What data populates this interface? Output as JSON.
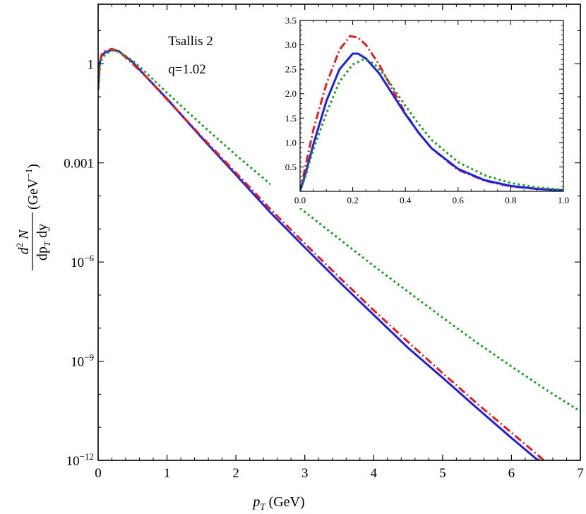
{
  "chart_data": [
    {
      "type": "line",
      "scale": "log-y",
      "annotations": [
        "Tsallis 2",
        "q=1.02"
      ],
      "xlabel": {
        "var": "p",
        "sub": "T",
        "unit": " (GeV)"
      },
      "ylabel": {
        "num_pre": "d",
        "num_sup": "2",
        "num_post": " N",
        "den_pre": "dp",
        "den_sub": "T",
        "den_post": " dy",
        "unit_pre": "(GeV",
        "unit_sup": "−1",
        "unit_post": ")"
      },
      "xlim": [
        0,
        7
      ],
      "ylim_log10": [
        -12,
        1.8
      ],
      "x_ticks": [
        "0",
        "1",
        "2",
        "3",
        "4",
        "5",
        "6",
        "7"
      ],
      "y_ticks": [
        {
          "exp": 0,
          "text": "1"
        },
        {
          "exp": -3,
          "text": "0.001"
        },
        {
          "exp": -6,
          "base": "10",
          "sup": "−6"
        },
        {
          "exp": -9,
          "base": "10",
          "sup": "−9"
        },
        {
          "exp": -12,
          "base": "10",
          "sup": "−12"
        }
      ],
      "series": [
        {
          "color": "#2020e0",
          "style": "solid",
          "points": [
            [
              0.0,
              -0.8
            ],
            [
              0.02,
              0.0
            ],
            [
              0.05,
              0.24
            ],
            [
              0.1,
              0.34
            ],
            [
              0.2,
              0.42
            ],
            [
              0.3,
              0.38
            ],
            [
              0.5,
              0.05
            ],
            [
              0.7,
              -0.4
            ],
            [
              1.0,
              -1.06
            ],
            [
              1.5,
              -2.23
            ],
            [
              2.0,
              -3.36
            ],
            [
              2.5,
              -4.5
            ],
            [
              3.0,
              -5.56
            ],
            [
              3.5,
              -6.6
            ],
            [
              4.0,
              -7.6
            ],
            [
              4.5,
              -8.6
            ],
            [
              5.0,
              -9.5
            ],
            [
              5.5,
              -10.42
            ],
            [
              6.0,
              -11.32
            ],
            [
              6.5,
              -12.2
            ]
          ]
        },
        {
          "color": "#e02020",
          "style": "dashdot",
          "points": [
            [
              0.0,
              -0.8
            ],
            [
              0.02,
              0.0
            ],
            [
              0.05,
              0.28
            ],
            [
              0.1,
              0.38
            ],
            [
              0.2,
              0.45
            ],
            [
              0.3,
              0.38
            ],
            [
              0.5,
              0.0
            ],
            [
              0.7,
              -0.4
            ],
            [
              1.0,
              -1.08
            ],
            [
              1.5,
              -2.2
            ],
            [
              2.0,
              -3.3
            ],
            [
              2.5,
              -4.4
            ],
            [
              3.0,
              -5.44
            ],
            [
              3.5,
              -6.46
            ],
            [
              4.0,
              -7.46
            ],
            [
              4.5,
              -8.42
            ],
            [
              5.0,
              -9.36
            ],
            [
              5.5,
              -10.28
            ],
            [
              6.0,
              -11.16
            ],
            [
              6.5,
              -12.05
            ],
            [
              6.6,
              -12.2
            ]
          ]
        },
        {
          "color": "#20a020",
          "style": "dotted",
          "points": [
            [
              0.0,
              -0.8
            ],
            [
              0.03,
              0.0
            ],
            [
              0.05,
              0.12
            ],
            [
              0.1,
              0.28
            ],
            [
              0.2,
              0.4
            ],
            [
              0.3,
              0.36
            ],
            [
              0.5,
              0.1
            ],
            [
              0.7,
              -0.28
            ],
            [
              1.0,
              -0.88
            ],
            [
              1.5,
              -1.84
            ],
            [
              2.0,
              -2.76
            ],
            [
              2.5,
              -3.64
            ],
            [
              3.0,
              -4.48
            ],
            [
              3.5,
              -5.3
            ],
            [
              4.0,
              -6.12
            ],
            [
              4.5,
              -6.9
            ],
            [
              5.0,
              -7.68
            ],
            [
              5.5,
              -8.44
            ],
            [
              6.0,
              -9.16
            ],
            [
              6.5,
              -9.86
            ],
            [
              7.0,
              -10.52
            ]
          ]
        }
      ]
    },
    {
      "type": "line",
      "inset": true,
      "xlim": [
        0,
        1
      ],
      "ylim": [
        0,
        3.5
      ],
      "x_ticks": [
        "0.0",
        "0.2",
        "0.4",
        "0.6",
        "0.8",
        "1.0"
      ],
      "y_ticks": [
        "0.5",
        "1.0",
        "1.5",
        "2.0",
        "2.5",
        "3.0",
        "3.5"
      ],
      "series": [
        {
          "color": "#e02020",
          "style": "dashdot",
          "points": [
            [
              0.0,
              0.0
            ],
            [
              0.02,
              0.5
            ],
            [
              0.05,
              1.25
            ],
            [
              0.1,
              2.2
            ],
            [
              0.15,
              2.9
            ],
            [
              0.19,
              3.18
            ],
            [
              0.22,
              3.15
            ],
            [
              0.25,
              3.0
            ],
            [
              0.3,
              2.6
            ],
            [
              0.35,
              2.1
            ],
            [
              0.4,
              1.6
            ],
            [
              0.45,
              1.2
            ],
            [
              0.5,
              0.88
            ],
            [
              0.6,
              0.44
            ],
            [
              0.7,
              0.22
            ],
            [
              0.8,
              0.1
            ],
            [
              0.9,
              0.05
            ],
            [
              1.0,
              0.02
            ]
          ]
        },
        {
          "color": "#2020e0",
          "style": "solid",
          "points": [
            [
              0.0,
              0.0
            ],
            [
              0.02,
              0.35
            ],
            [
              0.05,
              0.95
            ],
            [
              0.1,
              1.85
            ],
            [
              0.15,
              2.5
            ],
            [
              0.2,
              2.82
            ],
            [
              0.22,
              2.82
            ],
            [
              0.25,
              2.72
            ],
            [
              0.3,
              2.42
            ],
            [
              0.35,
              2.0
            ],
            [
              0.4,
              1.58
            ],
            [
              0.45,
              1.2
            ],
            [
              0.5,
              0.88
            ],
            [
              0.6,
              0.46
            ],
            [
              0.7,
              0.23
            ],
            [
              0.8,
              0.11
            ],
            [
              0.9,
              0.05
            ],
            [
              1.0,
              0.02
            ]
          ]
        },
        {
          "color": "#20a020",
          "style": "dotted",
          "points": [
            [
              0.0,
              0.0
            ],
            [
              0.02,
              0.3
            ],
            [
              0.05,
              0.85
            ],
            [
              0.1,
              1.6
            ],
            [
              0.15,
              2.25
            ],
            [
              0.2,
              2.6
            ],
            [
              0.24,
              2.7
            ],
            [
              0.28,
              2.62
            ],
            [
              0.32,
              2.38
            ],
            [
              0.35,
              2.15
            ],
            [
              0.4,
              1.75
            ],
            [
              0.45,
              1.38
            ],
            [
              0.5,
              1.05
            ],
            [
              0.6,
              0.6
            ],
            [
              0.7,
              0.33
            ],
            [
              0.8,
              0.17
            ],
            [
              0.9,
              0.08
            ],
            [
              1.0,
              0.03
            ]
          ]
        }
      ]
    }
  ]
}
